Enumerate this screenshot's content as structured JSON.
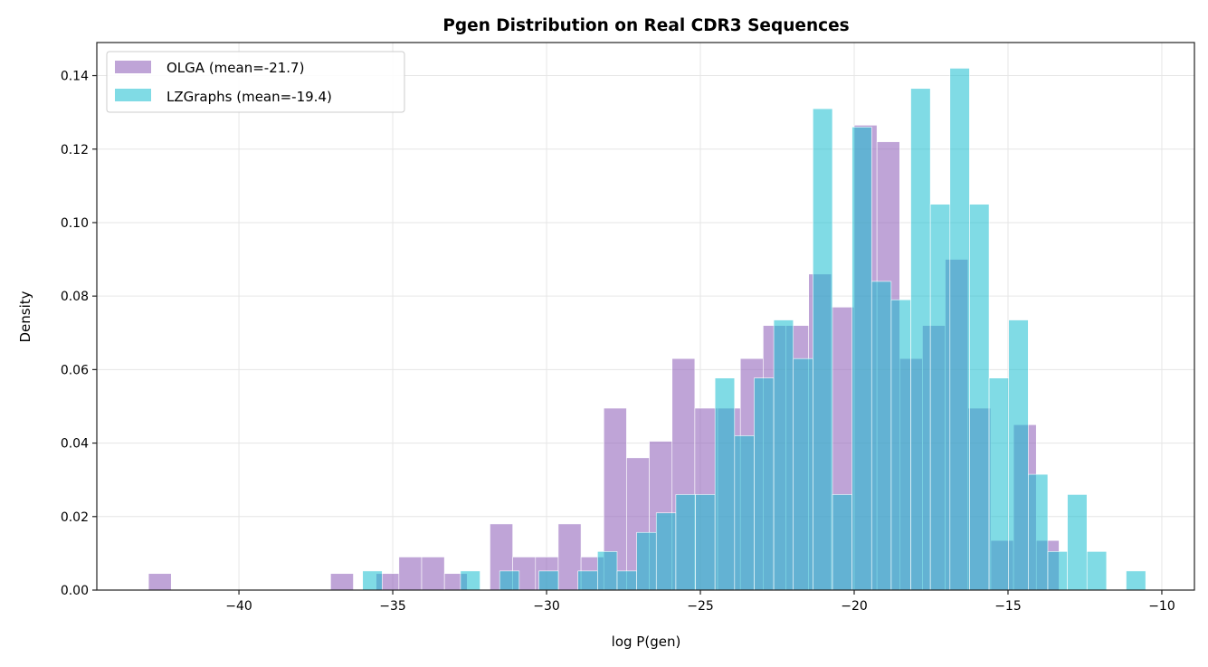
{
  "chart_data": {
    "type": "histogram",
    "title": "Pgen Distribution on Real CDR3 Sequences",
    "xlabel": "log P(gen)",
    "ylabel": "Density",
    "xlim": [
      -44.62,
      -8.94
    ],
    "ylim": [
      0,
      0.149
    ],
    "grid": true,
    "legend_placement": "top-left",
    "xticks": [
      -40,
      -35,
      -30,
      -25,
      -20,
      -15,
      -10
    ],
    "xtick_labels": [
      "−40",
      "−35",
      "−30",
      "−25",
      "−20",
      "−15",
      "−10"
    ],
    "yticks": [
      0,
      0.02,
      0.04,
      0.06,
      0.08,
      0.1,
      0.12,
      0.14
    ],
    "ytick_labels": [
      "0.00",
      "0.02",
      "0.04",
      "0.06",
      "0.08",
      "0.10",
      "0.12",
      "0.14"
    ],
    "series": [
      {
        "name": "OLGA (mean=-21.7)",
        "color": "#9467bd",
        "alpha": 0.6,
        "bin_start": -42.94,
        "bin_width": 0.74,
        "values": [
          0.0045,
          0,
          0,
          0,
          0,
          0,
          0,
          0,
          0.0045,
          0,
          0.0045,
          0.009,
          0.009,
          0.0045,
          0,
          0.018,
          0.009,
          0.009,
          0.018,
          0.009,
          0.0495,
          0.036,
          0.0405,
          0.063,
          0.0495,
          0.0495,
          0.063,
          0.072,
          0.072,
          0.086,
          0.077,
          0.1265,
          0.122,
          0.063,
          0.072,
          0.09,
          0.0495,
          0.0135,
          0.045,
          0.0135
        ]
      },
      {
        "name": "LZGraphs (mean=-19.4)",
        "color": "#17becf",
        "alpha": 0.55,
        "bin_start": -35.98,
        "bin_width": 0.6364,
        "values": [
          0.0052,
          0,
          0,
          0,
          0,
          0.0052,
          0,
          0.0052,
          0,
          0.0052,
          0,
          0.0052,
          0.0105,
          0.0052,
          0.0157,
          0.021,
          0.026,
          0.026,
          0.0577,
          0.042,
          0.0577,
          0.0735,
          0.063,
          0.131,
          0.026,
          0.126,
          0.084,
          0.079,
          0.1365,
          0.105,
          0.142,
          0.105,
          0.0577,
          0.0735,
          0.0315,
          0.0105,
          0.026,
          0.0105,
          0,
          0.0052
        ]
      }
    ]
  }
}
